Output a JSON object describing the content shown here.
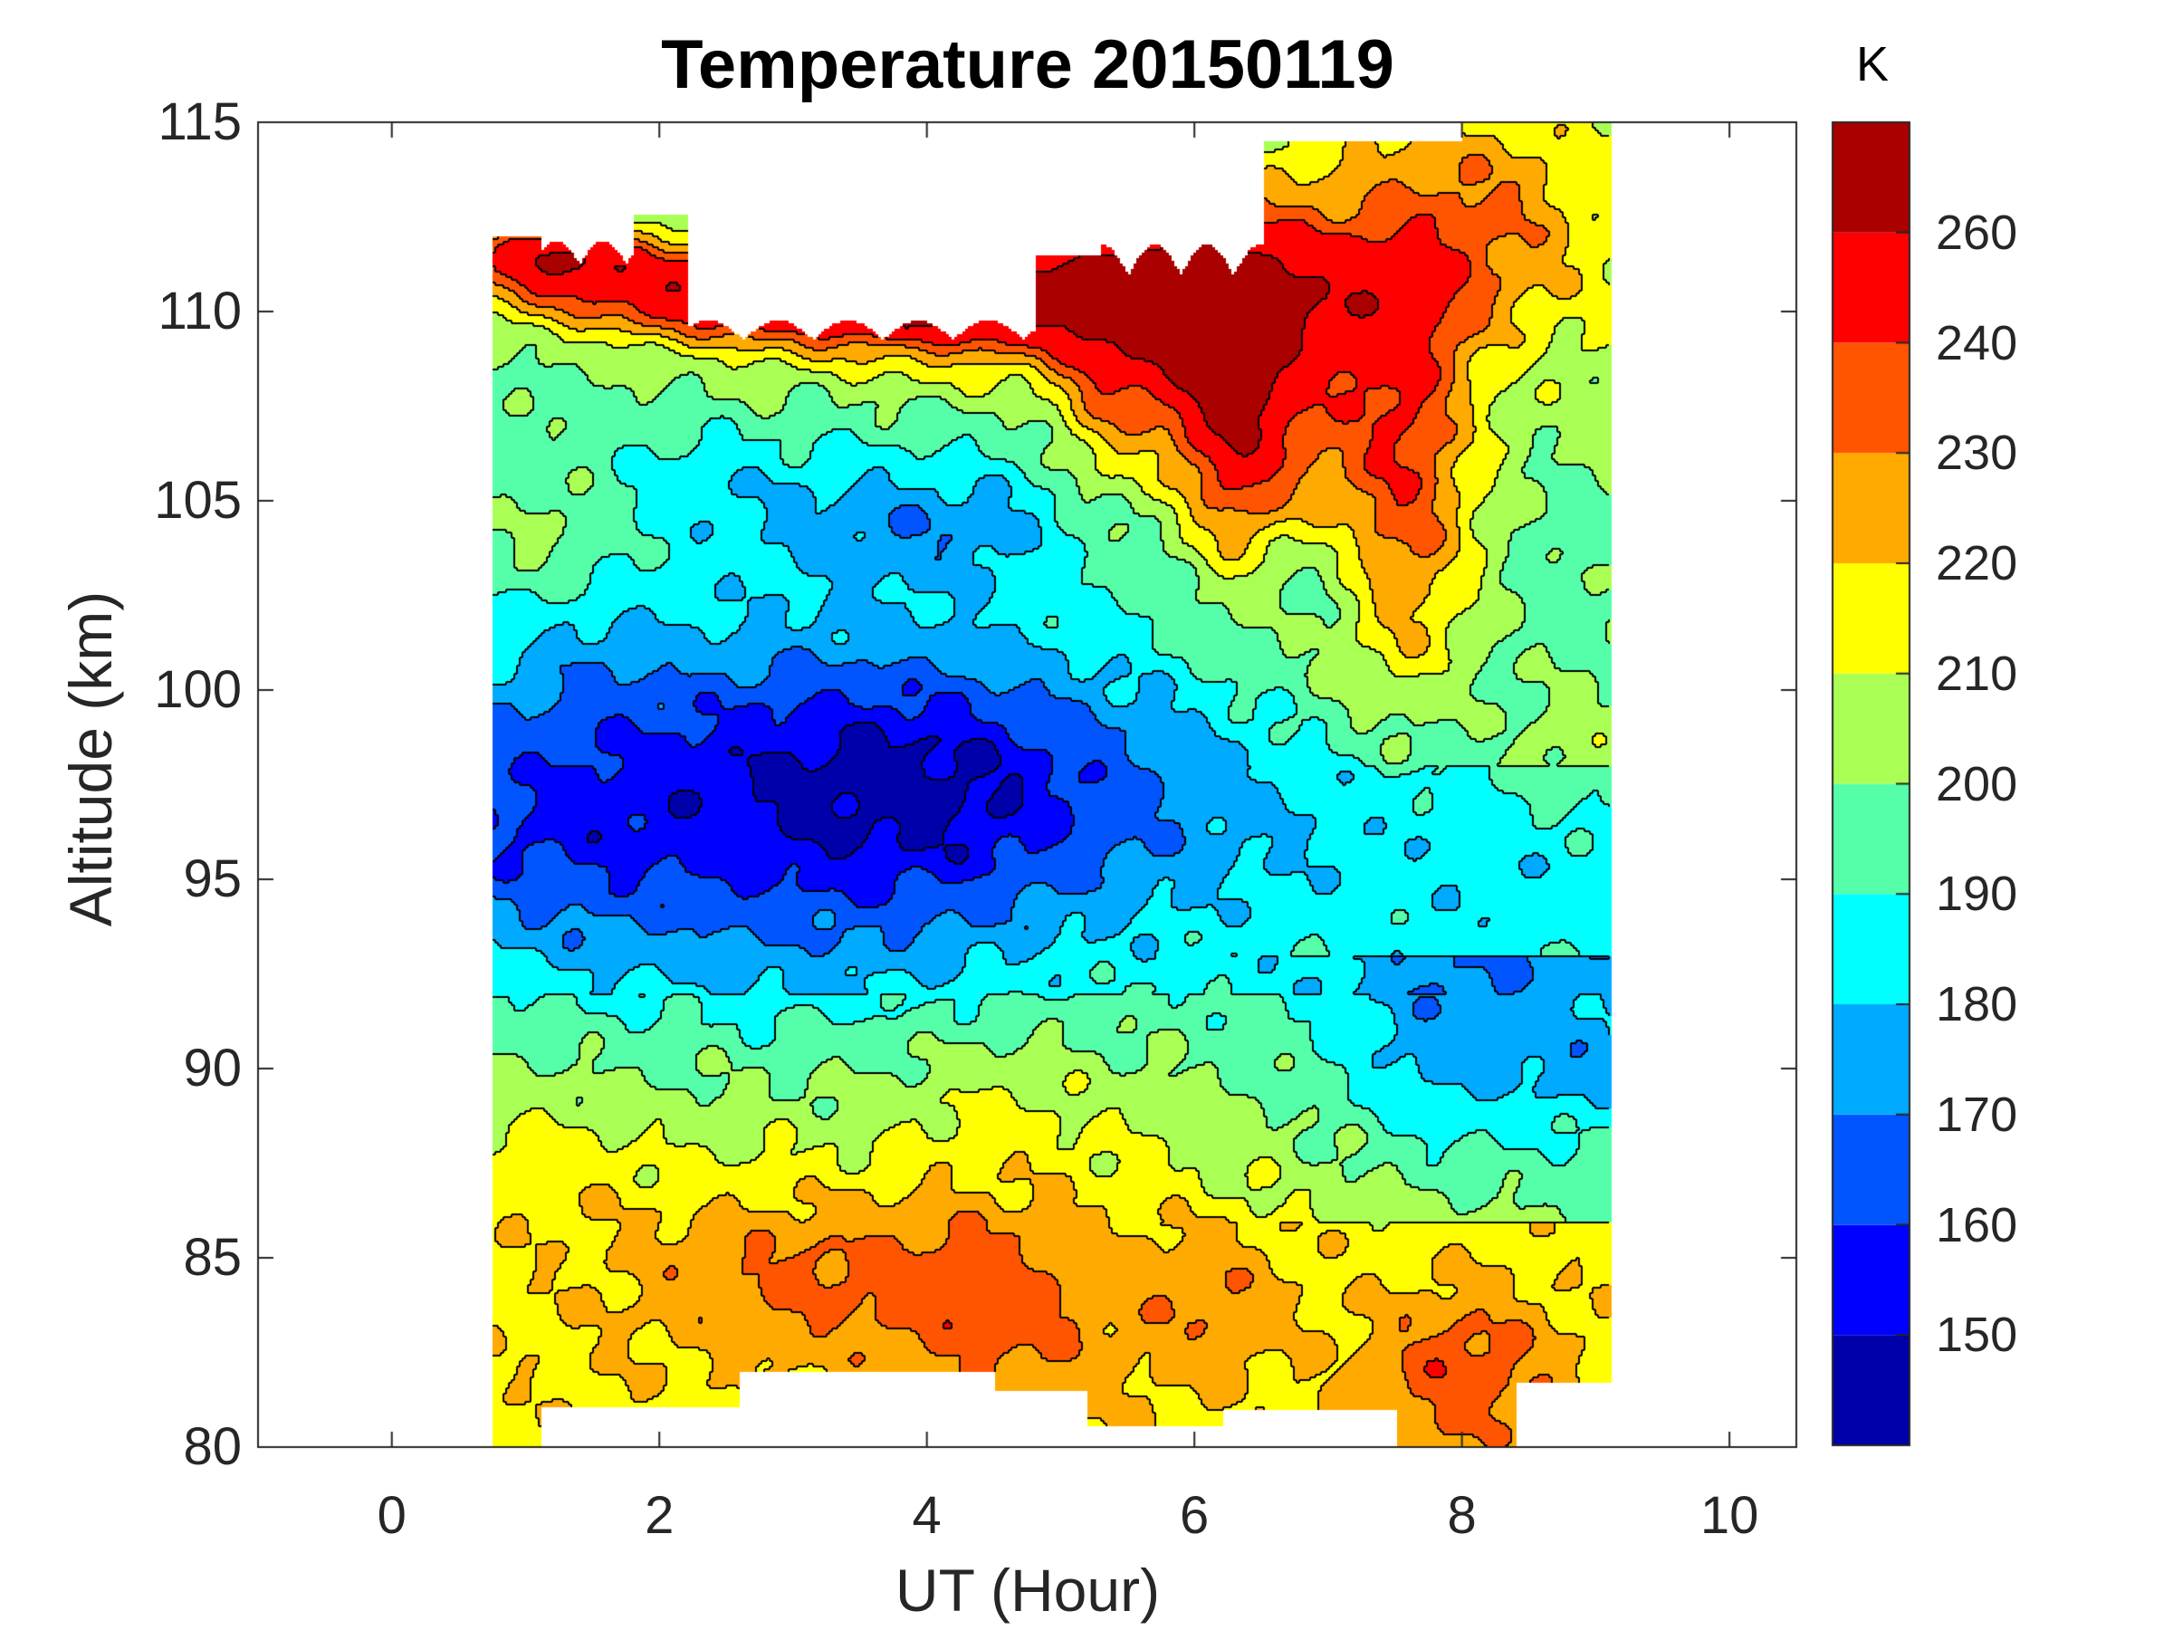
{
  "chart_data": {
    "type": "heatmap",
    "subtype": "filled-contour",
    "title": "Temperature 20150119",
    "xlabel": "UT (Hour)",
    "ylabel": "Altitude (km)",
    "xlim": [
      -1,
      10.5
    ],
    "ylim": [
      80,
      115
    ],
    "xticks": [
      "0",
      "2",
      "4",
      "6",
      "8",
      "10"
    ],
    "xtick_values": [
      0,
      2,
      4,
      6,
      8,
      10
    ],
    "yticks": [
      "80",
      "85",
      "90",
      "95",
      "100",
      "105",
      "110",
      "115"
    ],
    "ytick_values": [
      80,
      85,
      90,
      95,
      100,
      105,
      110,
      115
    ],
    "data_x_range": [
      0.75,
      9.1
    ],
    "grid": false,
    "colorbar": {
      "label": "K",
      "placement": "right",
      "range": [
        140,
        270
      ],
      "levels": [
        140,
        150,
        160,
        170,
        180,
        190,
        200,
        210,
        220,
        230,
        240,
        260,
        270
      ],
      "tick_labels": [
        "150",
        "160",
        "170",
        "180",
        "190",
        "200",
        "210",
        "220",
        "230",
        "240",
        "260"
      ],
      "tick_values": [
        150,
        160,
        170,
        180,
        190,
        200,
        210,
        220,
        230,
        240,
        260
      ],
      "colors": [
        "#0000aa",
        "#0000ff",
        "#0055ff",
        "#00aaff",
        "#00ffff",
        "#55ffaa",
        "#aaff55",
        "#ffff00",
        "#ffaa00",
        "#ff5500",
        "#ff0000",
        "#aa0000"
      ]
    },
    "features": [
      {
        "description": "warm layer near top",
        "x_range": [
          0.75,
          6.6
        ],
        "altitude_km": [
          107,
          112
        ],
        "temperature_K": 250
      },
      {
        "description": "warm column after 6.5 UT",
        "x_range": [
          6.5,
          9.1
        ],
        "altitude_km": [
          100,
          115
        ],
        "temperature_K": 225
      },
      {
        "description": "cold region",
        "x_range": [
          1.5,
          5.0
        ],
        "altitude_km": [
          94,
          106
        ],
        "temperature_K": 172
      },
      {
        "description": "cold region",
        "x_range": [
          7.3,
          8.3
        ],
        "altitude_km": [
          88,
          93
        ],
        "temperature_K": 175
      },
      {
        "description": "warm lower layer",
        "x_range": [
          0.75,
          9.1
        ],
        "altitude_km": [
          81,
          88
        ],
        "temperature_K": 222
      }
    ]
  }
}
